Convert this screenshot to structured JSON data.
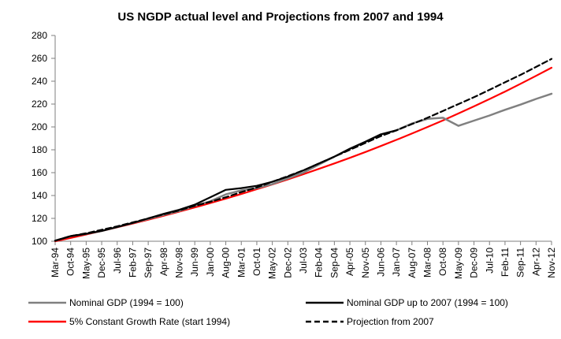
{
  "chart_data": {
    "type": "line",
    "title": "US NGDP actual level and Projections from 2007 and 1994",
    "xlabel": "",
    "ylabel": "",
    "ylim": [
      100,
      280
    ],
    "yticks": [
      100,
      120,
      140,
      160,
      180,
      200,
      220,
      240,
      260,
      280
    ],
    "grid": false,
    "legend_position": "bottom",
    "x_tick_labels": [
      "Mar-94",
      "Oct-94",
      "May-95",
      "Dec-95",
      "Jul-96",
      "Feb-97",
      "Sep-97",
      "Apr-98",
      "Nov-98",
      "Jun-99",
      "Jan-00",
      "Aug-00",
      "Mar-01",
      "Oct-01",
      "May-02",
      "Dec-02",
      "Jul-03",
      "Feb-04",
      "Sep-04",
      "Apr-05",
      "Nov-05",
      "Jun-06",
      "Jan-07",
      "Aug-07",
      "Mar-08",
      "Oct-08",
      "May-09",
      "Dec-09",
      "Jul-10",
      "Feb-11",
      "Sep-11",
      "Apr-12",
      "Nov-12"
    ],
    "series": [
      {
        "name": "Nominal GDP (1994 = 100)",
        "color": "#808080",
        "dash": "solid",
        "x": [
          0,
          1,
          2,
          3,
          4,
          5,
          6,
          7,
          8,
          9,
          10,
          11,
          12,
          13,
          14,
          15,
          16,
          17,
          18,
          19,
          20,
          21,
          22,
          23,
          24,
          25,
          26,
          27,
          28,
          29,
          30,
          31,
          32
        ],
        "values": [
          100.5,
          104.5,
          106.5,
          109,
          112.5,
          116,
          119.5,
          123,
          126.5,
          131,
          135,
          141,
          144.5,
          146.5,
          150,
          155,
          160,
          167,
          174,
          181,
          187,
          193.5,
          197,
          203,
          207,
          208,
          201,
          205.5,
          210,
          215,
          219.5,
          224.5,
          229
        ]
      },
      {
        "name": "Nominal GDP up to 2007 (1994 = 100)",
        "color": "#000000",
        "dash": "solid",
        "x": [
          0,
          1,
          2,
          3,
          4,
          5,
          6,
          7,
          8,
          9,
          10,
          11,
          12,
          13,
          14,
          15,
          16,
          17,
          18,
          19,
          20,
          21,
          22
        ],
        "values": [
          100.5,
          104.5,
          106.5,
          109,
          112.5,
          116,
          120,
          124,
          127.5,
          132,
          138.5,
          145,
          146.5,
          148.5,
          152,
          156.5,
          162,
          168,
          174,
          181,
          187,
          193.5,
          197
        ]
      },
      {
        "name": "5% Constant Growth Rate (start 1994)",
        "color": "#ff0000",
        "dash": "solid",
        "x": [
          0,
          1,
          2,
          3,
          4,
          5,
          6,
          7,
          8,
          9,
          10,
          11,
          12,
          13,
          14,
          15,
          16,
          17,
          18,
          19,
          20,
          21,
          22,
          23,
          24,
          25,
          26,
          27,
          28,
          29,
          30,
          31,
          32
        ],
        "values": [
          100,
          102.9,
          105.9,
          109,
          112.2,
          115.5,
          118.8,
          122.3,
          125.9,
          129.6,
          133.4,
          137.3,
          141.3,
          145.5,
          149.7,
          154.1,
          158.6,
          163.3,
          168.1,
          173,
          178.1,
          183.3,
          188.7,
          194.2,
          199.9,
          205.7,
          211.8,
          218,
          224.4,
          230.9,
          237.7,
          244.7,
          251.8
        ]
      },
      {
        "name": "Projection from 2007",
        "color": "#000000",
        "dash": "dashed",
        "x": [
          0,
          1,
          2,
          3,
          4,
          5,
          6,
          7,
          8,
          9,
          10,
          11,
          12,
          13,
          14,
          15,
          16,
          17,
          18,
          19,
          20,
          21,
          22,
          23,
          24,
          25,
          26,
          27,
          28,
          29,
          30,
          31,
          32
        ],
        "values": [
          100.5,
          104.5,
          107,
          110,
          113,
          116.5,
          120,
          123.5,
          127,
          131,
          134.5,
          138.5,
          143,
          147,
          152,
          157,
          162,
          168,
          174,
          180,
          186,
          192,
          197,
          202.5,
          208,
          214,
          220,
          226,
          232.5,
          239,
          245.5,
          252.5,
          259.5
        ]
      }
    ]
  }
}
